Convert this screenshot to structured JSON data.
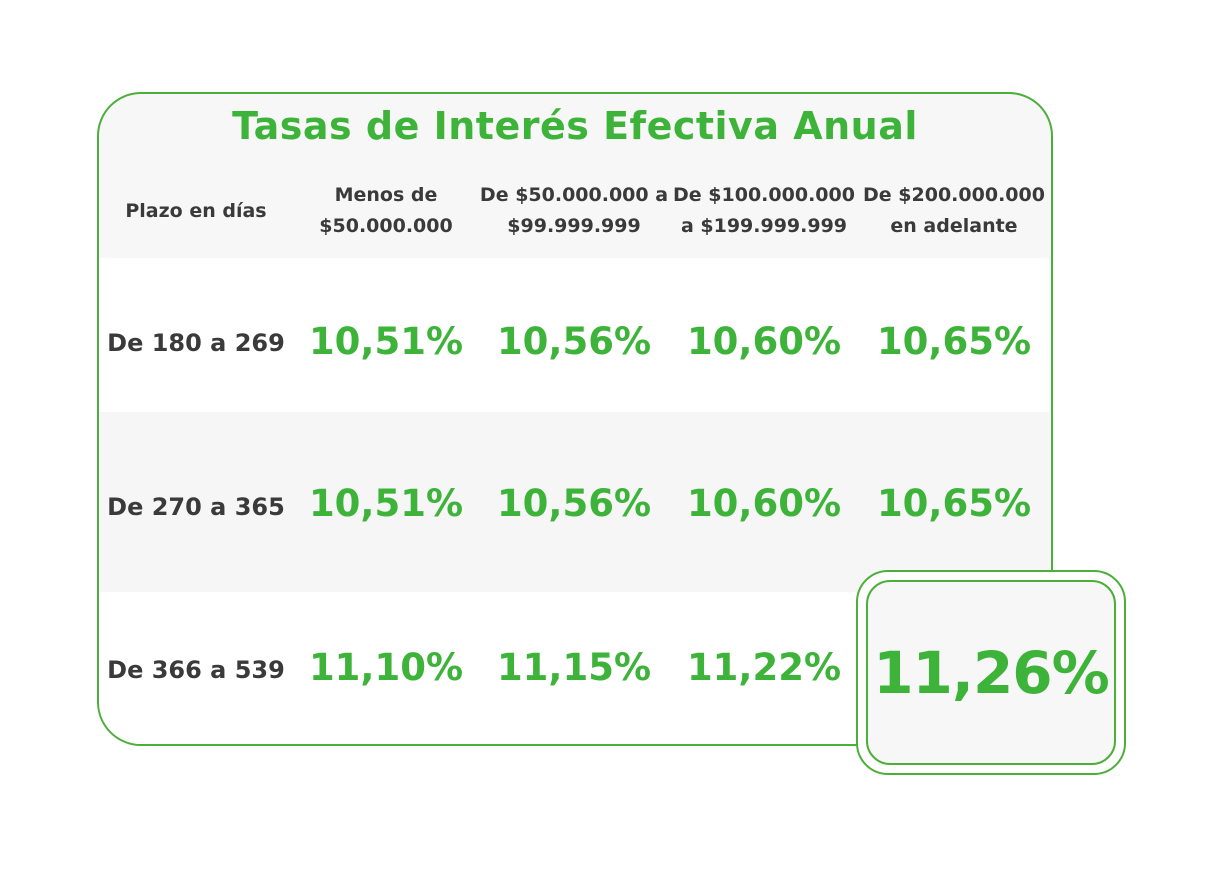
{
  "table": {
    "title": "Tasas de Interés Efectiva Anual",
    "headers": [
      "Plazo en días",
      "Menos de\n$50.000.000",
      "De $50.000.000 a\n$99.999.999",
      "De $100.000.000\na $199.999.999",
      "De $200.000.000\nen adelante"
    ],
    "rows": [
      {
        "label": "De 180 a 269",
        "rates": [
          "10,51%",
          "10,56%",
          "10,60%",
          "10,65%"
        ]
      },
      {
        "label": "De 270 a 365",
        "rates": [
          "10,51%",
          "10,56%",
          "10,60%",
          "10,65%"
        ]
      },
      {
        "label": "De 366 a 539",
        "rates": [
          "11,10%",
          "11,15%",
          "11,22%",
          "11,26%"
        ]
      }
    ],
    "highlighted_rate": "11,26%"
  },
  "colors": {
    "accent_green": "#3db33a",
    "border_green": "#4caf3a",
    "text_dark": "#3a3a3a",
    "card_background": "#f7f7f7"
  }
}
